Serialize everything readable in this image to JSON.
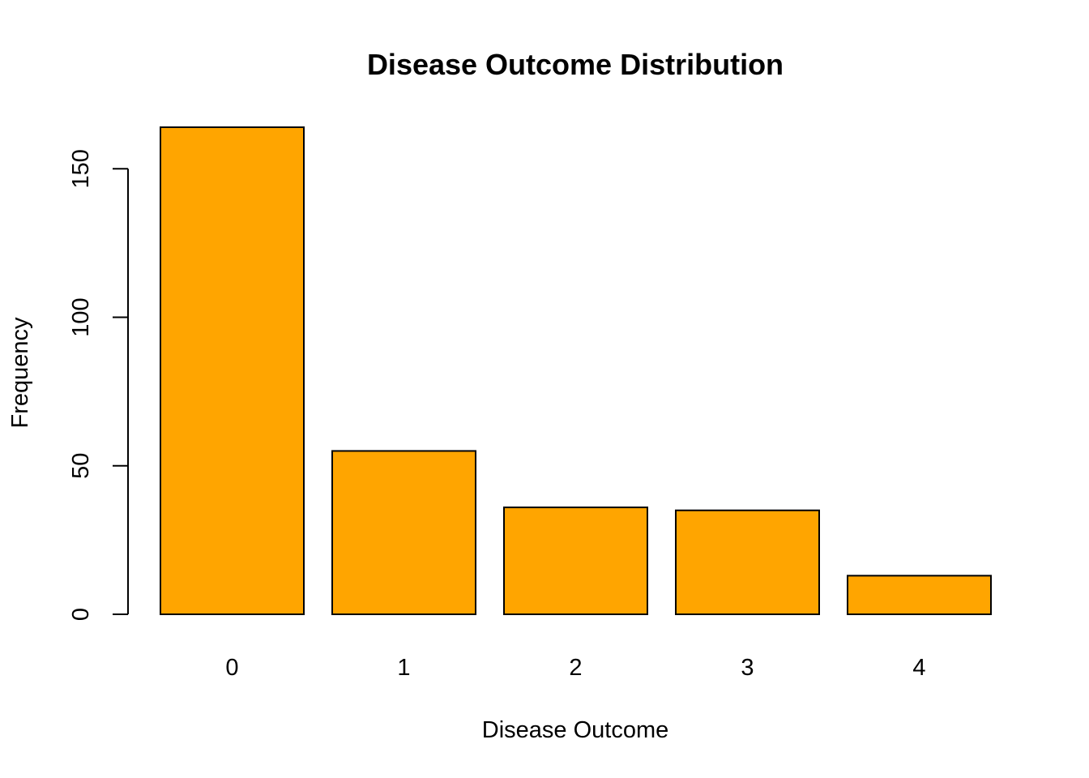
{
  "chart_data": {
    "type": "bar",
    "title": "Disease Outcome Distribution",
    "xlabel": "Disease Outcome",
    "ylabel": "Frequency",
    "categories": [
      "0",
      "1",
      "2",
      "3",
      "4"
    ],
    "values": [
      164,
      55,
      36,
      35,
      13
    ],
    "ylim": [
      0,
      164
    ],
    "yticks": [
      0,
      50,
      100,
      150
    ],
    "bar_color": "#FFA500",
    "bar_border_color": "#000000",
    "grid": false,
    "legend": "none"
  }
}
